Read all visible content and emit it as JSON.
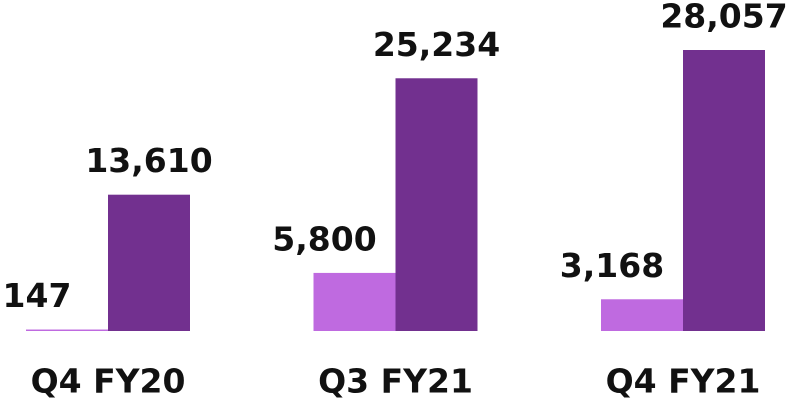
{
  "chart_data": {
    "type": "bar",
    "categories": [
      "Q4 FY20",
      "Q3 FY21",
      "Q4 FY21"
    ],
    "series": [
      {
        "color": "#bf6ae0",
        "values": [
          147,
          5800,
          3168
        ],
        "value_labels": [
          "147",
          "5,800",
          "3,168"
        ]
      },
      {
        "color": "#72308f",
        "values": [
          13610,
          25234,
          28057
        ],
        "value_labels": [
          "13,610",
          "25,234",
          "28,057"
        ]
      }
    ]
  }
}
